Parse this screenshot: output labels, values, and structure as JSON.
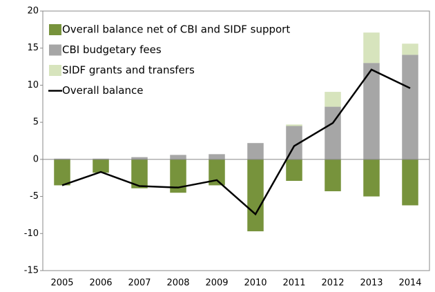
{
  "chart_data": {
    "type": "bar",
    "categories": [
      "2005",
      "2006",
      "2007",
      "2008",
      "2009",
      "2010",
      "2011",
      "2012",
      "2013",
      "2014"
    ],
    "series": [
      {
        "name": "Overall balance net of CBI and SIDF support",
        "color": "#77933c",
        "type": "bar",
        "values": [
          -3.5,
          -1.8,
          -3.9,
          -4.5,
          -3.5,
          -9.7,
          -2.9,
          -4.3,
          -5.0,
          -6.2
        ]
      },
      {
        "name": "CBI budgetary fees",
        "color": "#a6a6a6",
        "type": "bar",
        "values": [
          0.1,
          0.1,
          0.3,
          0.6,
          0.7,
          2.2,
          4.5,
          7.1,
          13.0,
          14.1
        ]
      },
      {
        "name": "SIDF grants and transfers",
        "color": "#d7e4bd",
        "type": "bar",
        "values": [
          0,
          0,
          0,
          0,
          0,
          0,
          0.2,
          2.0,
          4.1,
          1.5
        ]
      },
      {
        "name": "Overall balance",
        "color": "#000000",
        "type": "line",
        "values": [
          -3.5,
          -1.7,
          -3.6,
          -3.8,
          -2.8,
          -7.4,
          1.8,
          4.9,
          12.1,
          9.6
        ]
      }
    ],
    "ylim": [
      -15,
      20
    ],
    "yticks": [
      -15,
      -10,
      -5,
      0,
      5,
      10,
      15,
      20
    ],
    "stacked": true
  }
}
